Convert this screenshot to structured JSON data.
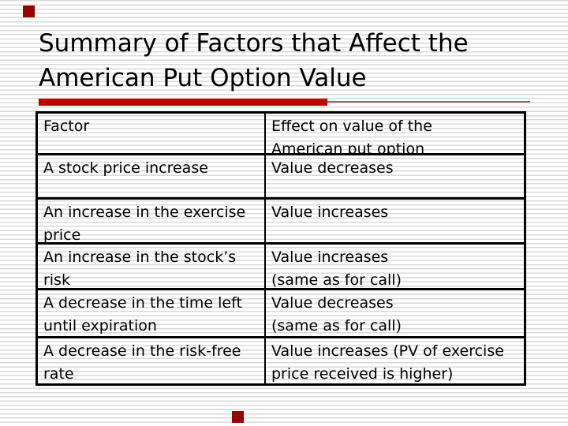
{
  "slide": {
    "title_line1": "Summary of Factors that Affect the",
    "title_line2": "American Put Option Value"
  },
  "table": {
    "header": {
      "factor": "Factor",
      "effect": "Effect on value of the\nAmerican put option"
    },
    "rows": [
      {
        "factor": "A stock price increase",
        "effect": "Value decreases"
      },
      {
        "factor": "An increase in the exercise\nprice",
        "effect": "Value increases"
      },
      {
        "factor": "An increase in the stock’s\nrisk",
        "effect": "Value increases\n(same as for call)"
      },
      {
        "factor": "A decrease in the time left\nuntil expiration",
        "effect": "Value decreases\n(same as for call)"
      },
      {
        "factor": "A decrease in the risk-free\nrate",
        "effect": "Value increases (PV of exercise\nprice received is higher)"
      }
    ]
  },
  "colors": {
    "accent_bar": "#c00000",
    "accent_rule": "#a85c5c",
    "decor_square": "#990000",
    "table_border": "#000000",
    "stripe": "#dadada",
    "text": "#000000"
  }
}
